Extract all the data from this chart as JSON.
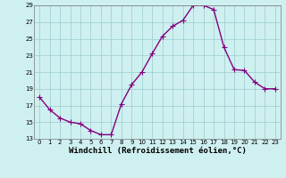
{
  "x": [
    0,
    1,
    2,
    3,
    4,
    5,
    6,
    7,
    8,
    9,
    10,
    11,
    12,
    13,
    14,
    15,
    16,
    17,
    18,
    19,
    20,
    21,
    22,
    23
  ],
  "y": [
    18.0,
    16.5,
    15.5,
    15.0,
    14.8,
    14.0,
    13.5,
    13.5,
    17.2,
    19.5,
    21.0,
    23.2,
    25.3,
    26.5,
    27.2,
    29.0,
    29.0,
    28.5,
    24.0,
    21.3,
    21.2,
    19.8,
    19.0,
    19.0
  ],
  "line_color": "#800080",
  "marker": "+",
  "marker_size": 4,
  "line_width": 1.0,
  "bg_color": "#cff0f0",
  "grid_color": "#99cccc",
  "xlabel": "Windchill (Refroidissement éolien,°C)",
  "xlabel_fontsize": 6.5,
  "xtick_fontsize": 5.0,
  "ytick_fontsize": 5.0,
  "ylim": [
    13,
    29
  ],
  "xlim": [
    -0.5,
    23.5
  ],
  "yticks": [
    13,
    15,
    17,
    19,
    21,
    23,
    25,
    27,
    29
  ],
  "xticks": [
    0,
    1,
    2,
    3,
    4,
    5,
    6,
    7,
    8,
    9,
    10,
    11,
    12,
    13,
    14,
    15,
    16,
    17,
    18,
    19,
    20,
    21,
    22,
    23
  ]
}
